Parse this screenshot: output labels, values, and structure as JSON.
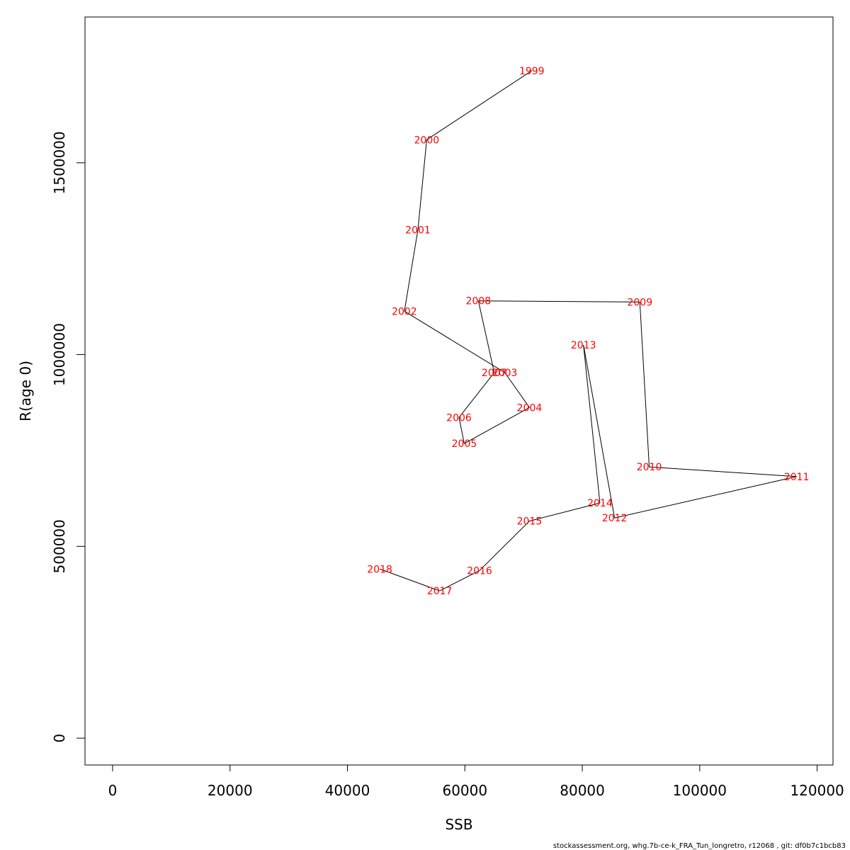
{
  "chart_data": {
    "type": "line",
    "title": "",
    "xlabel": "SSB",
    "ylabel": "R(age 0)",
    "xlim": [
      -4700,
      122700
    ],
    "ylim": [
      -70000,
      1880000
    ],
    "x_ticks": [
      0,
      20000,
      40000,
      60000,
      80000,
      100000,
      120000
    ],
    "y_ticks": [
      0,
      500000,
      1000000,
      1500000
    ],
    "grid": false,
    "line_color": "#000000",
    "label_color": "#ff0000",
    "points": [
      {
        "label": "1999",
        "x": 71400,
        "y": 1740000
      },
      {
        "label": "2000",
        "x": 53500,
        "y": 1560000
      },
      {
        "label": "2001",
        "x": 52000,
        "y": 1325000
      },
      {
        "label": "2002",
        "x": 49700,
        "y": 1113000
      },
      {
        "label": "2003",
        "x": 66800,
        "y": 953000
      },
      {
        "label": "2004",
        "x": 71000,
        "y": 862000
      },
      {
        "label": "2005",
        "x": 59900,
        "y": 768000
      },
      {
        "label": "2006",
        "x": 59000,
        "y": 836000
      },
      {
        "label": "2007",
        "x": 65000,
        "y": 953000
      },
      {
        "label": "2008",
        "x": 62300,
        "y": 1140000
      },
      {
        "label": "2009",
        "x": 89800,
        "y": 1137000
      },
      {
        "label": "2010",
        "x": 91400,
        "y": 707000
      },
      {
        "label": "2011",
        "x": 116500,
        "y": 682000
      },
      {
        "label": "2012",
        "x": 85500,
        "y": 574000
      },
      {
        "label": "2013",
        "x": 80200,
        "y": 1025000
      },
      {
        "label": "2014",
        "x": 83000,
        "y": 613000
      },
      {
        "label": "2015",
        "x": 71000,
        "y": 566000
      },
      {
        "label": "2016",
        "x": 62500,
        "y": 437000
      },
      {
        "label": "2017",
        "x": 55700,
        "y": 384000
      },
      {
        "label": "2018",
        "x": 45500,
        "y": 441000
      }
    ]
  },
  "footer": {
    "text": "stockassessment.org, whg.7b-ce-k_FRA_Tun_longretro, r12068 , git: df0b7c1bcb83"
  }
}
